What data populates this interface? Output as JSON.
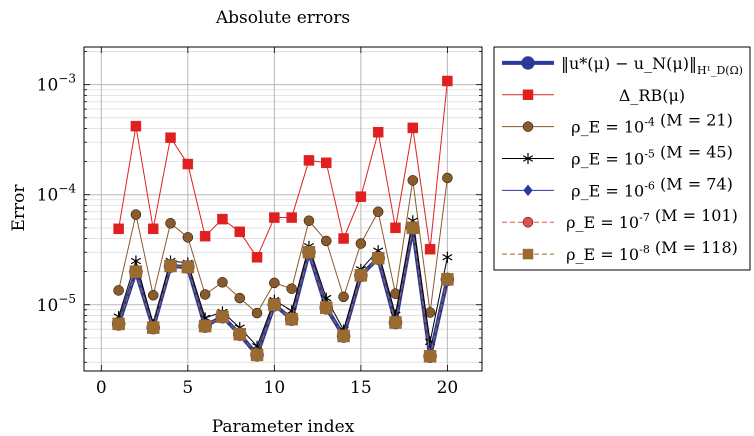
{
  "chart_data": {
    "type": "line",
    "title": "Absolute errors",
    "xlabel": "Parameter index",
    "ylabel": "Error",
    "x_scale": "linear",
    "y_scale": "log",
    "xlim": [
      -1,
      22
    ],
    "ylim": [
      2.5e-06,
      0.0022
    ],
    "x_ticks": [
      0,
      5,
      10,
      15,
      20
    ],
    "y_ticks": [
      {
        "value": 1e-05,
        "mant": "10",
        "exp": "−5"
      },
      {
        "value": 0.0001,
        "mant": "10",
        "exp": "−4"
      },
      {
        "value": 0.001,
        "mant": "10",
        "exp": "−3"
      }
    ],
    "grid": true,
    "legend_position": "outside-right",
    "x": [
      1,
      2,
      3,
      4,
      5,
      6,
      7,
      8,
      9,
      10,
      11,
      12,
      13,
      14,
      15,
      16,
      17,
      18,
      19,
      20
    ],
    "series": [
      {
        "name": "‖u*(μ) − u_N(μ)‖_{H¹_D(Ω)}",
        "color": "#2b3a9a",
        "marker": "circle",
        "dash": "solid",
        "width": 4,
        "values": [
          6.7e-06,
          2e-05,
          6.2e-06,
          2.25e-05,
          2.2e-05,
          6.4e-06,
          7.8e-06,
          5.4e-06,
          3.5e-06,
          1e-05,
          7.4e-06,
          3e-05,
          9.4e-06,
          5.2e-06,
          1.85e-05,
          2.65e-05,
          6.9e-06,
          5e-05,
          3.4e-06,
          1.7e-05
        ]
      },
      {
        "name": "Δ_RB(μ)",
        "color": "#e02020",
        "marker": "square",
        "dash": "solid",
        "width": 1,
        "values": [
          4.9e-05,
          0.00042,
          4.9e-05,
          0.00033,
          0.00019,
          4.2e-05,
          6e-05,
          4.6e-05,
          2.7e-05,
          6.2e-05,
          6.2e-05,
          0.000205,
          0.000195,
          4e-05,
          9.6e-05,
          0.00037,
          5e-05,
          0.000405,
          3.2e-05,
          0.00108
        ]
      },
      {
        "name": "ρ_E = 10^{-4} (M = 21)",
        "color": "#8b5a2b",
        "marker": "circle",
        "dash": "solid",
        "width": 1,
        "values": [
          1.35e-05,
          6.6e-05,
          1.22e-05,
          5.5e-05,
          4.1e-05,
          1.24e-05,
          1.6e-05,
          1.15e-05,
          8.4e-06,
          1.58e-05,
          1.4e-05,
          5.8e-05,
          3.8e-05,
          1.18e-05,
          3.6e-05,
          7e-05,
          1.26e-05,
          0.000135,
          8.5e-06,
          0.000142
        ]
      },
      {
        "name": "ρ_E = 10^{-5} (M = 45)",
        "color": "#000000",
        "marker": "star",
        "dash": "solid",
        "width": 1,
        "values": [
          7.8e-06,
          2.5e-05,
          6.6e-06,
          2.5e-05,
          2.4e-05,
          7.6e-06,
          8.6e-06,
          6.2e-06,
          4.2e-06,
          1.1e-05,
          8.8e-06,
          3.4e-05,
          1.15e-05,
          5.9e-06,
          2.1e-05,
          3.1e-05,
          8.1e-06,
          5.8e-05,
          4.6e-06,
          2.7e-05
        ]
      },
      {
        "name": "ρ_E = 10^{-6} (M = 74)",
        "color": "#2b3a9a",
        "marker": "diamond",
        "dash": "solid",
        "width": 1,
        "values": [
          6.8e-06,
          2.05e-05,
          6.3e-06,
          2.3e-05,
          2.25e-05,
          6.5e-06,
          7.9e-06,
          5.5e-06,
          3.6e-06,
          1.02e-05,
          7.5e-06,
          3.05e-05,
          9.6e-06,
          5.3e-06,
          1.88e-05,
          2.7e-05,
          7e-06,
          5.1e-05,
          3.5e-06,
          1.72e-05
        ]
      },
      {
        "name": "ρ_E = 10^{-7} (M = 101)",
        "color": "#e05050",
        "marker": "circle",
        "dash": "dashed",
        "width": 1,
        "values": [
          6.7e-06,
          2e-05,
          6.2e-06,
          2.25e-05,
          2.2e-05,
          6.4e-06,
          7.8e-06,
          5.4e-06,
          3.5e-06,
          1e-05,
          7.4e-06,
          3e-05,
          9.4e-06,
          5.2e-06,
          1.85e-05,
          2.65e-05,
          6.9e-06,
          5e-05,
          3.4e-06,
          1.7e-05
        ]
      },
      {
        "name": "ρ_E = 10^{-8} (M = 118)",
        "color": "#9b6a2e",
        "marker": "square",
        "dash": "dashed",
        "width": 1,
        "values": [
          6.7e-06,
          2e-05,
          6.2e-06,
          2.25e-05,
          2.2e-05,
          6.4e-06,
          7.8e-06,
          5.4e-06,
          3.5e-06,
          1e-05,
          7.4e-06,
          3e-05,
          9.4e-06,
          5.2e-06,
          1.85e-05,
          2.65e-05,
          6.9e-06,
          5e-05,
          3.4e-06,
          1.7e-05
        ]
      }
    ]
  }
}
